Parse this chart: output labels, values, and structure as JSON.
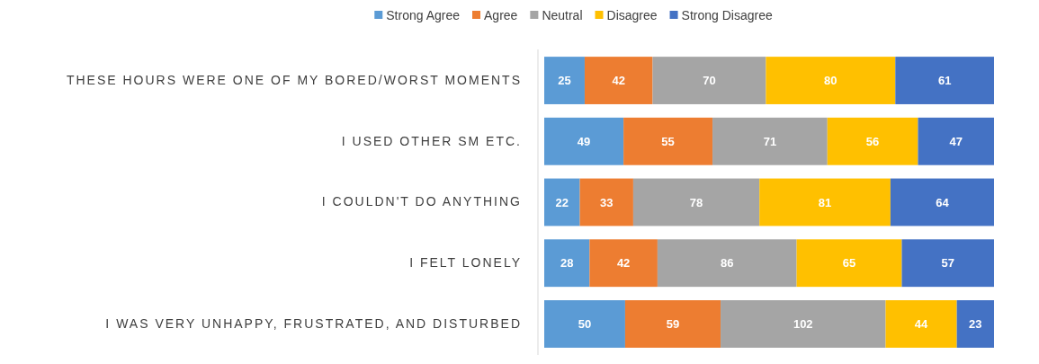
{
  "chart_data": {
    "type": "bar",
    "orientation": "horizontal",
    "stacked": true,
    "data_labels": true,
    "legend": "top",
    "categories": [
      "THESE HOURS WERE ONE OF MY BORED/WORST MOMENTS",
      "I USED OTHER SM ETC.",
      "I COULDN'T DO ANYTHING",
      "I FELT LONELY",
      "I WAS VERY UNHAPPY, FRUSTRATED, AND DISTURBED"
    ],
    "series": [
      {
        "name": "Strong Agree",
        "color": "#5b9bd5",
        "values": [
          25,
          49,
          22,
          28,
          50
        ]
      },
      {
        "name": "Agree",
        "color": "#ed7d31",
        "values": [
          42,
          55,
          33,
          42,
          59
        ]
      },
      {
        "name": "Neutral",
        "color": "#a5a5a5",
        "values": [
          70,
          71,
          78,
          86,
          102
        ]
      },
      {
        "name": "Disagree",
        "color": "#ffc000",
        "values": [
          80,
          56,
          81,
          65,
          44
        ]
      },
      {
        "name": "Strong Disagree",
        "color": "#4472c4",
        "values": [
          61,
          47,
          64,
          57,
          23
        ]
      }
    ]
  }
}
